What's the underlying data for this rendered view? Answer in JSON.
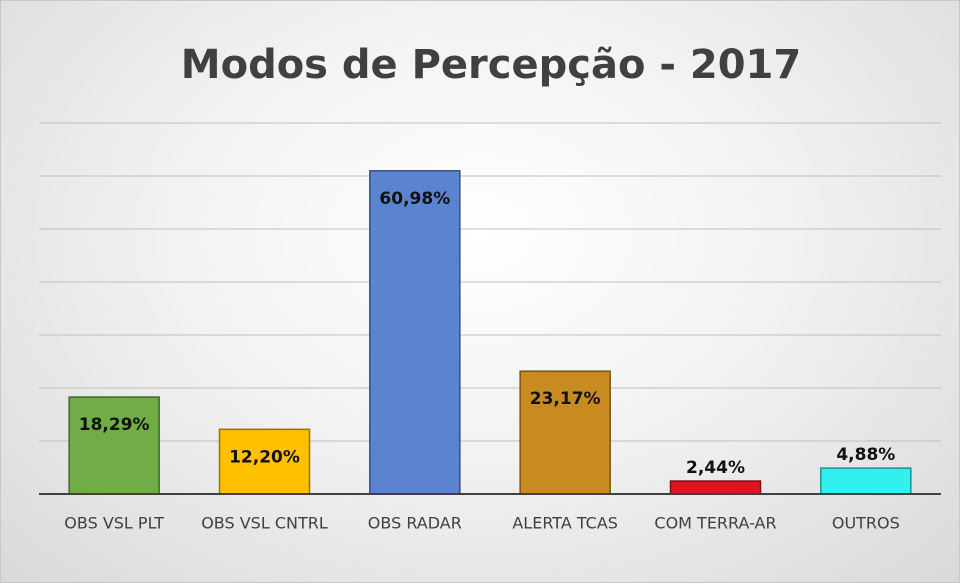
{
  "chart_data": {
    "type": "bar",
    "title": "Modos de Percepção - 2017",
    "categories": [
      "OBS VSL PLT",
      "OBS VSL CNTRL",
      "OBS RADAR",
      "ALERTA TCAS",
      "COM TERRA-AR",
      "OUTROS"
    ],
    "values": [
      18.29,
      12.2,
      60.98,
      23.17,
      2.44,
      4.88
    ],
    "value_labels": [
      "18,29%",
      "12,20%",
      "60,98%",
      "23,17%",
      "2,44%",
      "4,88%"
    ],
    "colors": [
      "#70ad47",
      "#ffc000",
      "#5b84d0",
      "#c98b1f",
      "#e0141e",
      "#33f0f0"
    ],
    "ylim": [
      0,
      70
    ],
    "yticks": [
      0,
      10,
      20,
      30,
      40,
      50,
      60,
      70
    ],
    "grid": true
  }
}
